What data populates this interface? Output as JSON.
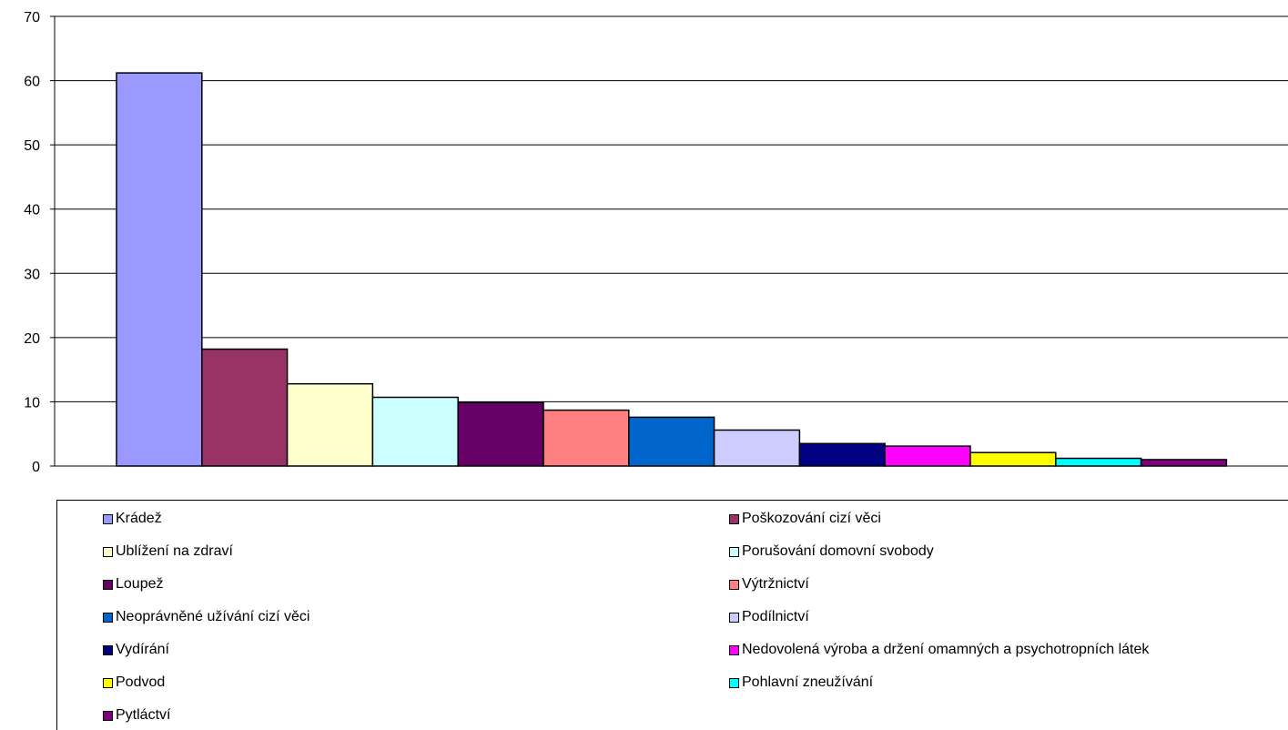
{
  "chart_data": {
    "type": "bar",
    "title": "",
    "xlabel": "",
    "ylabel": "",
    "ylim": [
      0,
      70
    ],
    "yticks": [
      0,
      10,
      20,
      30,
      40,
      50,
      60,
      70
    ],
    "grid": true,
    "legend_position": "bottom",
    "series": [
      {
        "name": "Krádež",
        "value": 61.2,
        "color": "#9999FF"
      },
      {
        "name": "Poškozování cizí věci",
        "value": 18.2,
        "color": "#993366"
      },
      {
        "name": "Ublížení na zdraví",
        "value": 12.8,
        "color": "#FFFFCC"
      },
      {
        "name": "Porušování domovní svobody",
        "value": 10.7,
        "color": "#CCFFFF"
      },
      {
        "name": "Loupež",
        "value": 9.9,
        "color": "#660066"
      },
      {
        "name": "Výtržnictví",
        "value": 8.7,
        "color": "#FF8080"
      },
      {
        "name": "Neoprávněné užívání cizí věci",
        "value": 7.6,
        "color": "#0066CC"
      },
      {
        "name": "Podílnictví",
        "value": 5.6,
        "color": "#CCCCFF"
      },
      {
        "name": "Vydírání",
        "value": 3.5,
        "color": "#000080"
      },
      {
        "name": "Nedovolená výroba a držení omamných a psychotropních látek",
        "value": 3.1,
        "color": "#FF00FF"
      },
      {
        "name": "Podvod",
        "value": 2.1,
        "color": "#FFFF00"
      },
      {
        "name": "Pohlavní zneužívání",
        "value": 1.2,
        "color": "#00FFFF"
      },
      {
        "name": "Pytláctví",
        "value": 1.0,
        "color": "#800080"
      }
    ]
  }
}
